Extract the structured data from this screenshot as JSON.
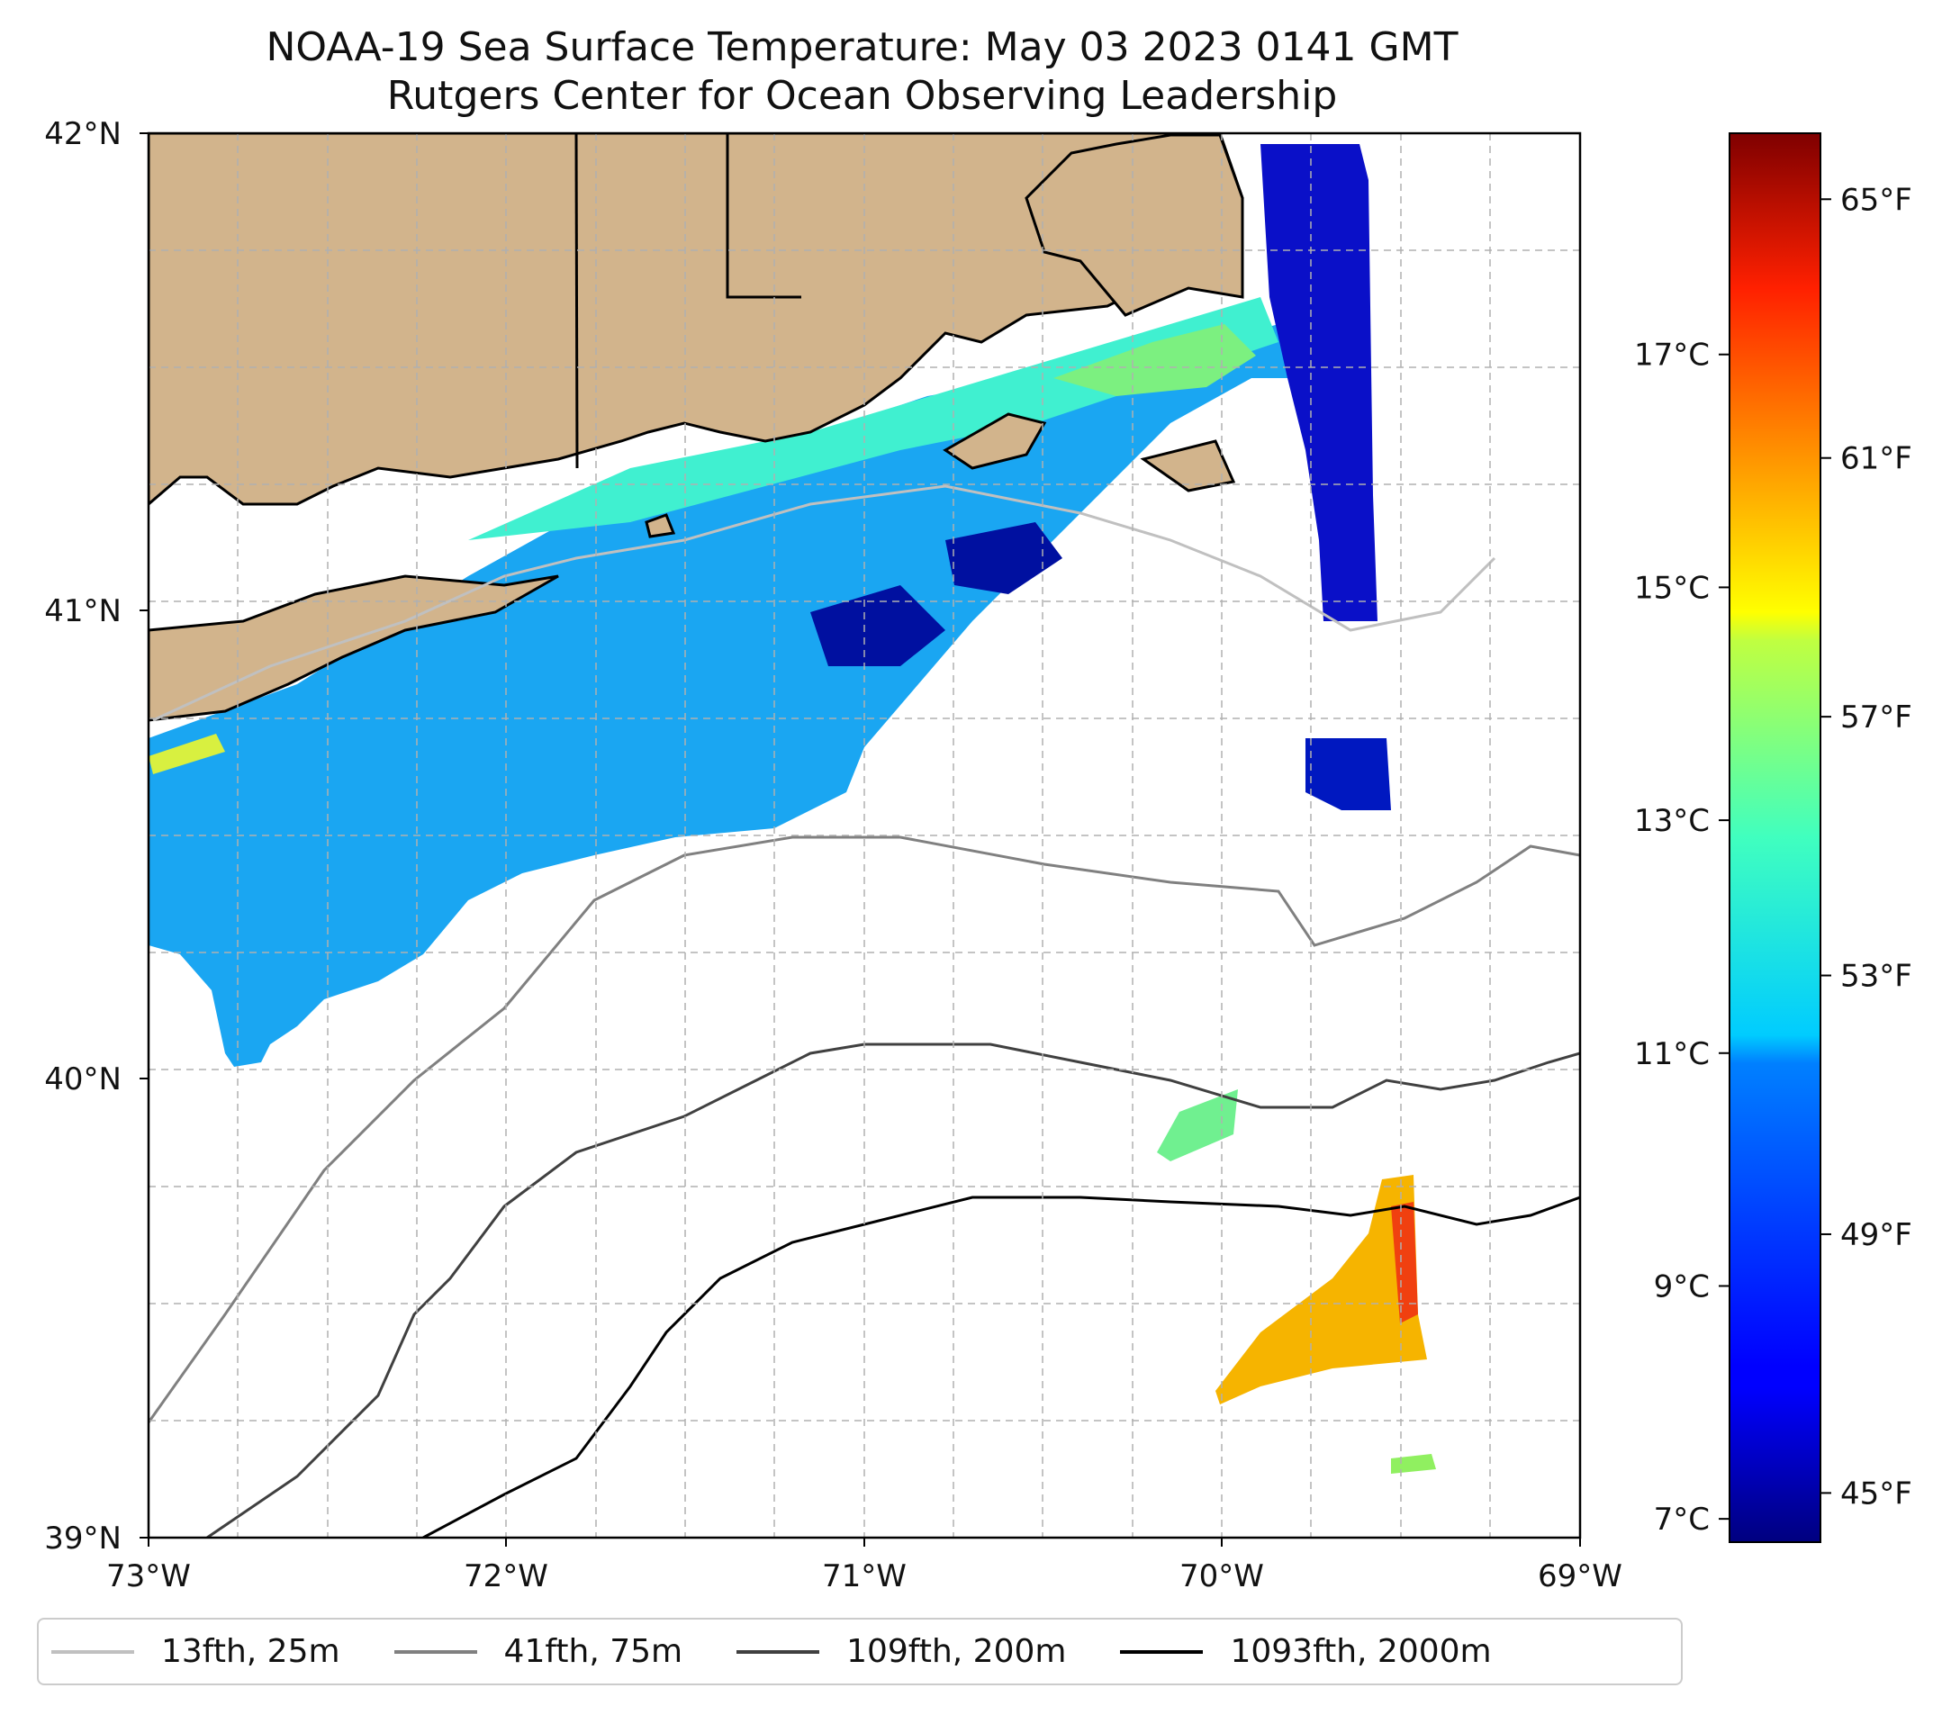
{
  "title": {
    "line1": "NOAA-19 Sea Surface Temperature: May 03 2023 0141 GMT",
    "line2": "Rutgers Center for Ocean Observing Leadership"
  },
  "map": {
    "lon_range": [
      -73,
      -69
    ],
    "lat_range": [
      39,
      42
    ],
    "lat_labels": [
      "42°N",
      "41°N",
      "40°N",
      "39°N"
    ],
    "lon_labels": [
      "73°W",
      "72°W",
      "71°W",
      "70°W",
      "69°W"
    ],
    "gridlines": "dashed",
    "land_color": "#d2b48c",
    "colormap": "jet"
  },
  "colorbar": {
    "celsius_labels": [
      "17°C",
      "15°C",
      "13°C",
      "11°C",
      "9°C",
      "7°C"
    ],
    "fahrenheit_labels": [
      "65°F",
      "61°F",
      "57°F",
      "53°F",
      "49°F",
      "45°F"
    ],
    "celsius_values": [
      17,
      15,
      13,
      11,
      9,
      7
    ],
    "fahrenheit_values": [
      65,
      61,
      57,
      53,
      49,
      45
    ],
    "min_c": 6.8,
    "max_c": 18.9
  },
  "legend": [
    {
      "label": "13fth, 25m",
      "color": "#c0c0c0"
    },
    {
      "label": "41fth, 75m",
      "color": "#808080"
    },
    {
      "label": "109fth, 200m",
      "color": "#404040"
    },
    {
      "label": "1093fth, 2000m",
      "color": "#000000"
    }
  ]
}
